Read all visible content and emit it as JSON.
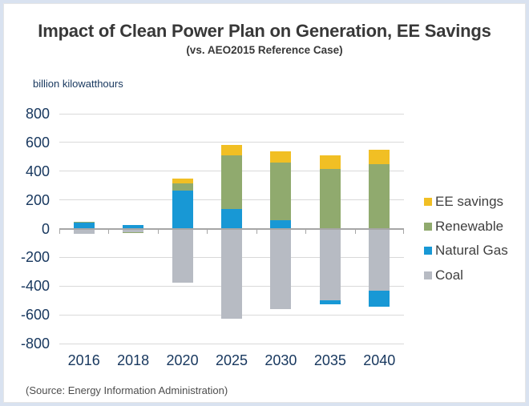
{
  "header": {
    "title": "Impact of Clean Power Plan on Generation, EE Savings",
    "subtitle": "(vs. AEO2015 Reference Case)"
  },
  "axis_unit_label": "billion kilowatthours",
  "source_note": "(Source: Energy Information Administration)",
  "colors": {
    "frame_border": "#d9e2f0",
    "gridline": "#d9d9d9",
    "zero_axis": "#a6a6a6",
    "axis_text": "#17375e",
    "title_text": "#383838",
    "legend_text": "#3f3f3f",
    "source_text": "#4d4d4d"
  },
  "legend": {
    "position": "right",
    "items": [
      {
        "label": "EE savings",
        "color": "#f1bf24"
      },
      {
        "label": "Renewable",
        "color": "#90aa6e"
      },
      {
        "label": "Natural Gas",
        "color": "#1898d5"
      },
      {
        "label": "Coal",
        "color": "#b7bbc3"
      }
    ]
  },
  "chart_data": {
    "type": "bar",
    "stacked": true,
    "title": "Impact of Clean Power Plan on Generation, EE Savings",
    "subtitle": "(vs. AEO2015 Reference Case)",
    "ylabel": "billion kilowatthours",
    "xlabel": "",
    "ylim": [
      -800,
      800
    ],
    "ytick_step": 200,
    "grid": true,
    "legend_position": "right",
    "categories": [
      "2016",
      "2018",
      "2020",
      "2025",
      "2030",
      "2035",
      "2040"
    ],
    "series": [
      {
        "name": "EE savings",
        "color": "#f1bf24",
        "values": [
          0,
          0,
          35,
          70,
          78,
          97,
          100
        ]
      },
      {
        "name": "Renewable",
        "color": "#90aa6e",
        "values": [
          8,
          -8,
          50,
          375,
          398,
          415,
          450
        ]
      },
      {
        "name": "Natural Gas",
        "color": "#1898d5",
        "values": [
          40,
          25,
          265,
          135,
          60,
          -28,
          -115
        ]
      },
      {
        "name": "Coal",
        "color": "#b7bbc3",
        "values": [
          -35,
          -25,
          -375,
          -625,
          -560,
          -500,
          -430
        ]
      }
    ],
    "positive_stack_order": [
      "Natural Gas",
      "Renewable",
      "EE savings"
    ],
    "negative_stack_order": [
      "Coal",
      "Natural Gas",
      "Renewable"
    ]
  }
}
